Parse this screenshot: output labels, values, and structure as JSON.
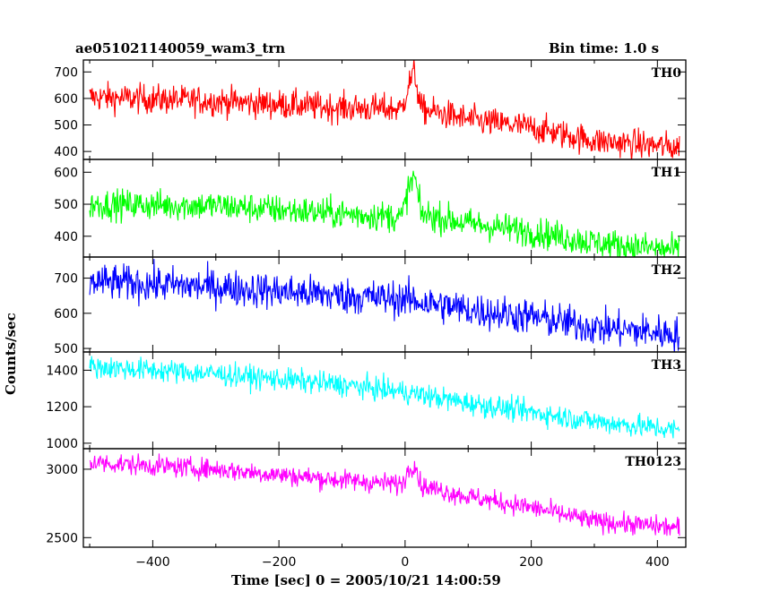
{
  "header": {
    "title": "ae051021140059_wam3_trn",
    "bin_time": "Bin time: 1.0 s"
  },
  "axes": {
    "xlabel": "Time [sec] 0 = 2005/10/21 14:00:59",
    "ylabel": "Counts/sec"
  },
  "chart_data": {
    "type": "line",
    "x_range": [
      -510,
      445
    ],
    "x_ticks": [
      -400,
      -200,
      0,
      200,
      400
    ],
    "x_tick_labels": [
      "−400",
      "−200",
      "0",
      "200",
      "400"
    ],
    "data_x_range": [
      -500,
      435
    ],
    "bin_time_s": 1.0,
    "panels": [
      {
        "name": "TH0",
        "color": "#ff0000",
        "ylim": [
          370,
          745
        ],
        "yticks": [
          400,
          500,
          600,
          700
        ],
        "series": [
          {
            "x": -500,
            "y": 605
          },
          {
            "x": -300,
            "y": 590
          },
          {
            "x": -100,
            "y": 565
          },
          {
            "x": -5,
            "y": 560
          },
          {
            "x": 5,
            "y": 650
          },
          {
            "x": 15,
            "y": 700
          },
          {
            "x": 25,
            "y": 560
          },
          {
            "x": 100,
            "y": 520
          },
          {
            "x": 200,
            "y": 490
          },
          {
            "x": 300,
            "y": 440
          },
          {
            "x": 435,
            "y": 415
          }
        ],
        "noise": 28
      },
      {
        "name": "TH1",
        "color": "#00ff00",
        "ylim": [
          335,
          640
        ],
        "yticks": [
          400,
          500,
          600
        ],
        "series": [
          {
            "x": -500,
            "y": 500
          },
          {
            "x": -300,
            "y": 495
          },
          {
            "x": -100,
            "y": 470
          },
          {
            "x": -5,
            "y": 460
          },
          {
            "x": 5,
            "y": 545
          },
          {
            "x": 15,
            "y": 590
          },
          {
            "x": 25,
            "y": 470
          },
          {
            "x": 100,
            "y": 440
          },
          {
            "x": 200,
            "y": 415
          },
          {
            "x": 300,
            "y": 380
          },
          {
            "x": 435,
            "y": 355
          }
        ],
        "noise": 24
      },
      {
        "name": "TH2",
        "color": "#0000ff",
        "ylim": [
          490,
          760
        ],
        "yticks": [
          500,
          600,
          700
        ],
        "series": [
          {
            "x": -500,
            "y": 690
          },
          {
            "x": -300,
            "y": 675
          },
          {
            "x": -100,
            "y": 650
          },
          {
            "x": 0,
            "y": 640
          },
          {
            "x": 100,
            "y": 610
          },
          {
            "x": 200,
            "y": 590
          },
          {
            "x": 300,
            "y": 560
          },
          {
            "x": 435,
            "y": 540
          }
        ],
        "noise": 26
      },
      {
        "name": "TH3",
        "color": "#00ffff",
        "ylim": [
          970,
          1500
        ],
        "yticks": [
          1000,
          1200,
          1400
        ],
        "series": [
          {
            "x": -500,
            "y": 1420
          },
          {
            "x": -300,
            "y": 1380
          },
          {
            "x": -100,
            "y": 1320
          },
          {
            "x": 0,
            "y": 1280
          },
          {
            "x": 100,
            "y": 1220
          },
          {
            "x": 200,
            "y": 1170
          },
          {
            "x": 300,
            "y": 1120
          },
          {
            "x": 435,
            "y": 1070
          }
        ],
        "noise": 32
      },
      {
        "name": "TH0123",
        "color": "#ff00ff",
        "ylim": [
          2430,
          3150
        ],
        "yticks": [
          2500,
          3000
        ],
        "series": [
          {
            "x": -500,
            "y": 3050
          },
          {
            "x": -300,
            "y": 3000
          },
          {
            "x": -100,
            "y": 2920
          },
          {
            "x": -5,
            "y": 2890
          },
          {
            "x": 5,
            "y": 2990
          },
          {
            "x": 15,
            "y": 3050
          },
          {
            "x": 25,
            "y": 2880
          },
          {
            "x": 100,
            "y": 2800
          },
          {
            "x": 200,
            "y": 2720
          },
          {
            "x": 300,
            "y": 2620
          },
          {
            "x": 435,
            "y": 2570
          }
        ],
        "noise": 38
      }
    ]
  }
}
